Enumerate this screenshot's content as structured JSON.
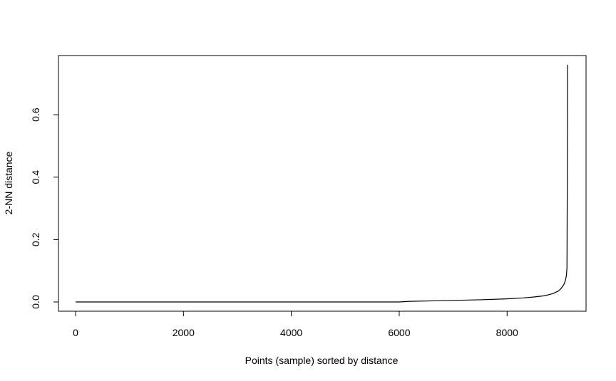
{
  "chart_data": {
    "type": "line",
    "title": "",
    "xlabel": "Points (sample) sorted by distance",
    "ylabel": "2-NN distance",
    "xlim": [
      0,
      9120
    ],
    "ylim": [
      0,
      0.76
    ],
    "xticks": [
      0,
      2000,
      4000,
      6000,
      8000
    ],
    "xtick_labels": [
      "0",
      "2000",
      "4000",
      "6000",
      "8000"
    ],
    "yticks": [
      0.0,
      0.2,
      0.4,
      0.6
    ],
    "ytick_labels": [
      "0.0",
      "0.2",
      "0.4",
      "0.6"
    ],
    "grid": false,
    "legend": "none",
    "line_color": "#000000",
    "series": [
      {
        "x": [
          1,
          6000,
          6200,
          6500,
          7000,
          7500,
          8000,
          8300,
          8500,
          8700,
          8850,
          8950,
          9000,
          9050,
          9080,
          9100,
          9110,
          9115,
          9118,
          9120
        ],
        "y": [
          0.0,
          0.0,
          0.002,
          0.003,
          0.005,
          0.007,
          0.01,
          0.013,
          0.016,
          0.02,
          0.027,
          0.035,
          0.043,
          0.055,
          0.068,
          0.085,
          0.11,
          0.34,
          0.5,
          0.76
        ]
      }
    ]
  }
}
